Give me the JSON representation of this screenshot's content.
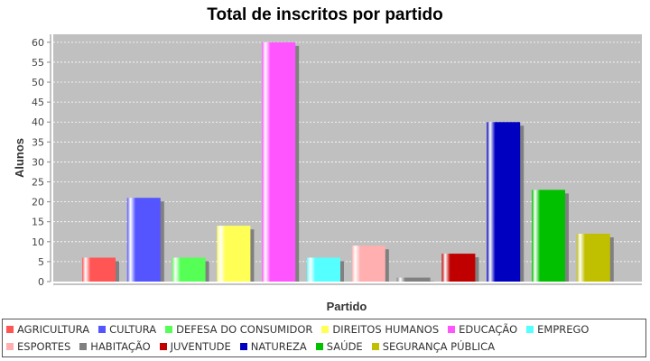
{
  "chart_data": {
    "type": "bar",
    "title": "Total de inscritos por partido",
    "xlabel": "Partido",
    "ylabel": "Alunos",
    "ylim": [
      0,
      62
    ],
    "yticks": [
      0,
      5,
      10,
      15,
      20,
      25,
      30,
      35,
      40,
      45,
      50,
      55,
      60
    ],
    "grid": true,
    "legend_position": "bottom",
    "background": "#c0c0c0",
    "series": [
      {
        "name": "AGRICULTURA",
        "value": 6,
        "color": "#ff5555"
      },
      {
        "name": "CULTURA",
        "value": 21,
        "color": "#5555ff"
      },
      {
        "name": "DEFESA DO CONSUMIDOR",
        "value": 6,
        "color": "#55ff55"
      },
      {
        "name": "DIREITOS HUMANOS",
        "value": 14,
        "color": "#ffff55"
      },
      {
        "name": "EDUCAÇÃO",
        "value": 60,
        "color": "#ff55ff"
      },
      {
        "name": "EMPREGO",
        "value": 6,
        "color": "#55ffff"
      },
      {
        "name": "ESPORTES",
        "value": 9,
        "color": "#ffafaf"
      },
      {
        "name": "HABITAÇÃO",
        "value": 1,
        "color": "#808080"
      },
      {
        "name": "JUVENTUDE",
        "value": 7,
        "color": "#c00000"
      },
      {
        "name": "NATUREZA",
        "value": 40,
        "color": "#0000c0"
      },
      {
        "name": "SAÚDE",
        "value": 23,
        "color": "#00c000"
      },
      {
        "name": "SEGURANÇA PÚBLICA",
        "value": 12,
        "color": "#c0c000"
      }
    ]
  }
}
